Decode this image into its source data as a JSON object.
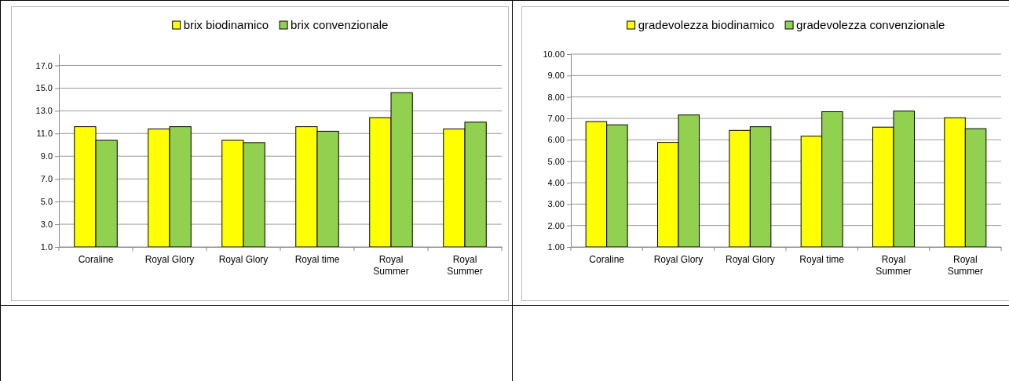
{
  "chart_data": [
    {
      "type": "bar",
      "categories": [
        "Coraline",
        "Royal Glory",
        "Royal Glory",
        "Royal time",
        "Royal Summer",
        "Royal Summer"
      ],
      "series": [
        {
          "name": "brix biodinamico",
          "color": "#ffff00",
          "values": [
            11.6,
            11.4,
            10.4,
            11.6,
            12.4,
            11.4
          ]
        },
        {
          "name": "brix convenzionale",
          "color": "#92d050",
          "values": [
            10.4,
            11.6,
            10.2,
            11.2,
            14.6,
            12.0
          ]
        }
      ],
      "ylim": [
        1,
        18
      ],
      "yticks": [
        {
          "value": 1,
          "label": "1.0"
        },
        {
          "value": 3,
          "label": "3.0"
        },
        {
          "value": 5,
          "label": "5.0"
        },
        {
          "value": 7,
          "label": "7.0"
        },
        {
          "value": 9,
          "label": "9.0"
        },
        {
          "value": 11,
          "label": "11.0"
        },
        {
          "value": 13,
          "label": "13.0"
        },
        {
          "value": 15,
          "label": "15.0"
        },
        {
          "value": 17,
          "label": "17.0"
        }
      ],
      "grid": "y",
      "legend": "top"
    },
    {
      "type": "bar",
      "categories": [
        "Coraline",
        "Royal Glory",
        "Royal Glory",
        "Royal time",
        "Royal Summer",
        "Royal Summer"
      ],
      "series": [
        {
          "name": "gradevolezza biodinamico",
          "color": "#ffff00",
          "values": [
            6.85,
            5.88,
            6.44,
            6.17,
            6.59,
            7.03
          ]
        },
        {
          "name": "gradevolezza convenzionale",
          "color": "#92d050",
          "values": [
            6.7,
            7.16,
            6.61,
            7.31,
            7.34,
            6.52
          ]
        }
      ],
      "ylim": [
        1,
        10
      ],
      "yticks": [
        {
          "value": 1,
          "label": "1.00"
        },
        {
          "value": 2,
          "label": "2.00"
        },
        {
          "value": 3,
          "label": "3.00"
        },
        {
          "value": 4,
          "label": "4.00"
        },
        {
          "value": 5,
          "label": "5.00"
        },
        {
          "value": 6,
          "label": "6.00"
        },
        {
          "value": 7,
          "label": "7.00"
        },
        {
          "value": 8,
          "label": "8.00"
        },
        {
          "value": 9,
          "label": "9.00"
        },
        {
          "value": 10,
          "label": "10.00"
        }
      ],
      "grid": "y",
      "legend": "top"
    }
  ]
}
